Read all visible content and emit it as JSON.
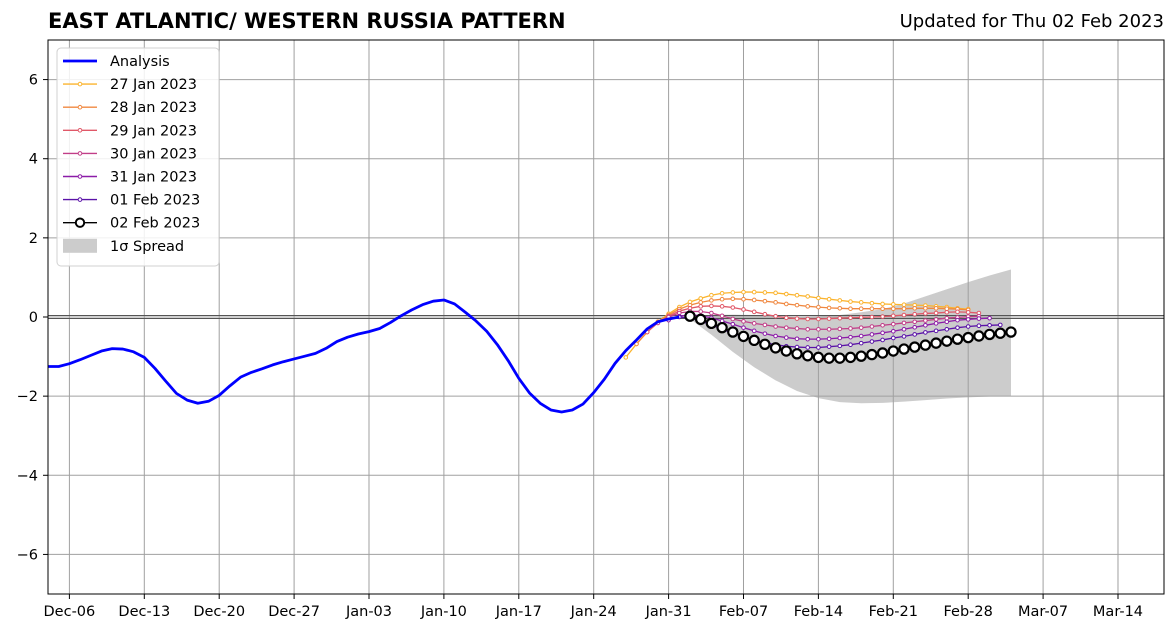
{
  "header": {
    "title": "EAST ATLANTIC/ WESTERN RUSSIA PATTERN",
    "updated": "Updated for Thu 02 Feb 2023"
  },
  "chart_data": {
    "type": "line",
    "title": "EAST ATLANTIC/ WESTERN RUSSIA PATTERN",
    "subtitle": "Updated for Thu 02 Feb 2023",
    "xlabel": "",
    "ylabel": "",
    "x_start_date": "2023-12-04",
    "x_range_days": [
      0,
      104.3
    ],
    "ylim": [
      -7,
      7
    ],
    "grid": true,
    "legend_position": "upper-left",
    "x_ticks": [
      {
        "day": 2,
        "label": "Dec-06"
      },
      {
        "day": 9,
        "label": "Dec-13"
      },
      {
        "day": 16,
        "label": "Dec-20"
      },
      {
        "day": 23,
        "label": "Dec-27"
      },
      {
        "day": 30,
        "label": "Jan-03"
      },
      {
        "day": 37,
        "label": "Jan-10"
      },
      {
        "day": 44,
        "label": "Jan-17"
      },
      {
        "day": 51,
        "label": "Jan-24"
      },
      {
        "day": 58,
        "label": "Jan-31"
      },
      {
        "day": 65,
        "label": "Feb-07"
      },
      {
        "day": 72,
        "label": "Feb-14"
      },
      {
        "day": 79,
        "label": "Feb-21"
      },
      {
        "day": 86,
        "label": "Feb-28"
      },
      {
        "day": 93,
        "label": "Mar-07"
      },
      {
        "day": 100,
        "label": "Mar-14"
      }
    ],
    "y_ticks": [
      6,
      4,
      2,
      0,
      -2,
      -4,
      -6
    ],
    "y_tick_labels": [
      "6",
      "4",
      "2",
      "0",
      "−2",
      "−4",
      "−6"
    ],
    "series": [
      {
        "name": "Analysis",
        "color": "#0000ff",
        "x": [
          0,
          1,
          2,
          3,
          4,
          5,
          6,
          7,
          8,
          9,
          10,
          11,
          12,
          13,
          14,
          15,
          16,
          17,
          18,
          19,
          20,
          21,
          22,
          23,
          24,
          25,
          26,
          27,
          28,
          29,
          30,
          31,
          32,
          33,
          34,
          35,
          36,
          37,
          38,
          39,
          40,
          41,
          42,
          43,
          44,
          45,
          46,
          47,
          48,
          49,
          50,
          51,
          52,
          53,
          54,
          55,
          56,
          57,
          58,
          59
        ],
        "values": [
          -1.25,
          -1.25,
          -1.18,
          -1.08,
          -0.97,
          -0.86,
          -0.8,
          -0.81,
          -0.88,
          -1.02,
          -1.3,
          -1.62,
          -1.93,
          -2.1,
          -2.18,
          -2.13,
          -1.98,
          -1.74,
          -1.52,
          -1.4,
          -1.31,
          -1.21,
          -1.13,
          -1.06,
          -0.99,
          -0.92,
          -0.79,
          -0.62,
          -0.51,
          -0.43,
          -0.37,
          -0.29,
          -0.14,
          0.03,
          0.18,
          0.31,
          0.4,
          0.43,
          0.33,
          0.12,
          -0.1,
          -0.36,
          -0.7,
          -1.1,
          -1.55,
          -1.92,
          -2.18,
          -2.35,
          -2.4,
          -2.35,
          -2.2,
          -1.91,
          -1.57,
          -1.17,
          -0.85,
          -0.58,
          -0.3,
          -0.12,
          -0.05,
          0.0
        ]
      },
      {
        "name": "27 Jan 2023",
        "color": "#fbb42e",
        "x": [
          54,
          55,
          56,
          57,
          58,
          59,
          60,
          61,
          62,
          63,
          64,
          65,
          66,
          67,
          68,
          69,
          70,
          71,
          72,
          73,
          74,
          75,
          76,
          77,
          78,
          79,
          80,
          81,
          82,
          83,
          84,
          85,
          86
        ],
        "values": [
          -1.02,
          -0.68,
          -0.38,
          -0.12,
          0.08,
          0.25,
          0.38,
          0.47,
          0.55,
          0.6,
          0.62,
          0.63,
          0.63,
          0.62,
          0.61,
          0.58,
          0.55,
          0.52,
          0.48,
          0.45,
          0.42,
          0.39,
          0.37,
          0.35,
          0.33,
          0.32,
          0.31,
          0.3,
          0.29,
          0.27,
          0.25,
          0.22,
          0.2
        ]
      },
      {
        "name": "28 Jan 2023",
        "color": "#f08840",
        "x": [
          55,
          56,
          57,
          58,
          59,
          60,
          61,
          62,
          63,
          64,
          65,
          66,
          67,
          68,
          69,
          70,
          71,
          72,
          73,
          74,
          75,
          76,
          77,
          78,
          79,
          80,
          81,
          82,
          83,
          84,
          85,
          86
        ],
        "values": [
          -0.68,
          -0.38,
          -0.12,
          0.05,
          0.2,
          0.3,
          0.37,
          0.42,
          0.45,
          0.46,
          0.45,
          0.43,
          0.4,
          0.37,
          0.33,
          0.3,
          0.27,
          0.25,
          0.23,
          0.22,
          0.21,
          0.21,
          0.21,
          0.21,
          0.21,
          0.21,
          0.22,
          0.22,
          0.22,
          0.21,
          0.2,
          0.18
        ]
      },
      {
        "name": "29 Jan 2023",
        "color": "#e05868",
        "x": [
          56,
          57,
          58,
          59,
          60,
          61,
          62,
          63,
          64,
          65,
          66,
          67,
          68,
          69,
          70,
          71,
          72,
          73,
          74,
          75,
          76,
          77,
          78,
          79,
          80,
          81,
          82,
          83,
          84,
          85,
          86,
          87
        ],
        "values": [
          -0.38,
          -0.15,
          0.02,
          0.15,
          0.22,
          0.27,
          0.28,
          0.27,
          0.24,
          0.19,
          0.13,
          0.07,
          0.02,
          -0.02,
          -0.04,
          -0.05,
          -0.05,
          -0.04,
          -0.03,
          -0.02,
          -0.01,
          0.0,
          0.01,
          0.03,
          0.05,
          0.07,
          0.09,
          0.1,
          0.12,
          0.13,
          0.12,
          0.1
        ]
      },
      {
        "name": "30 Jan 2023",
        "color": "#c13e88",
        "x": [
          57,
          58,
          59,
          60,
          61,
          62,
          63,
          64,
          65,
          66,
          67,
          68,
          69,
          70,
          71,
          72,
          73,
          74,
          75,
          76,
          77,
          78,
          79,
          80,
          81,
          82,
          83,
          84,
          85,
          86,
          87
        ],
        "values": [
          -0.15,
          0.0,
          0.1,
          0.14,
          0.14,
          0.1,
          0.03,
          -0.05,
          -0.11,
          -0.16,
          -0.2,
          -0.24,
          -0.27,
          -0.29,
          -0.31,
          -0.31,
          -0.31,
          -0.3,
          -0.29,
          -0.27,
          -0.24,
          -0.21,
          -0.18,
          -0.15,
          -0.12,
          -0.09,
          -0.06,
          -0.03,
          -0.01,
          0.01,
          0.02
        ]
      },
      {
        "name": "31 Jan 2023",
        "color": "#8c1ca8",
        "x": [
          58,
          59,
          60,
          61,
          62,
          63,
          64,
          65,
          66,
          67,
          68,
          69,
          70,
          71,
          72,
          73,
          74,
          75,
          76,
          77,
          78,
          79,
          80,
          81,
          82,
          83,
          84,
          85,
          86,
          87,
          88
        ],
        "values": [
          -0.08,
          0.02,
          0.06,
          0.03,
          -0.02,
          -0.1,
          -0.18,
          -0.27,
          -0.35,
          -0.42,
          -0.48,
          -0.52,
          -0.55,
          -0.56,
          -0.56,
          -0.55,
          -0.53,
          -0.51,
          -0.48,
          -0.44,
          -0.4,
          -0.36,
          -0.31,
          -0.26,
          -0.21,
          -0.16,
          -0.12,
          -0.08,
          -0.06,
          -0.04,
          -0.03
        ]
      },
      {
        "name": "01 Feb 2023",
        "color": "#5a12a8",
        "x": [
          59,
          60,
          61,
          62,
          63,
          64,
          65,
          66,
          67,
          68,
          69,
          70,
          71,
          72,
          73,
          74,
          75,
          76,
          77,
          78,
          79,
          80,
          81,
          82,
          83,
          84,
          85,
          86,
          87,
          88,
          89
        ],
        "values": [
          0.0,
          -0.03,
          -0.1,
          -0.2,
          -0.31,
          -0.41,
          -0.5,
          -0.58,
          -0.65,
          -0.7,
          -0.74,
          -0.76,
          -0.77,
          -0.77,
          -0.75,
          -0.73,
          -0.7,
          -0.66,
          -0.62,
          -0.58,
          -0.53,
          -0.49,
          -0.44,
          -0.39,
          -0.35,
          -0.31,
          -0.27,
          -0.24,
          -0.22,
          -0.21,
          -0.2
        ]
      },
      {
        "name": "02 Feb 2023",
        "color": "#000000",
        "x": [
          60,
          61,
          62,
          63,
          64,
          65,
          66,
          67,
          68,
          69,
          70,
          71,
          72,
          73,
          74,
          75,
          76,
          77,
          78,
          79,
          80,
          81,
          82,
          83,
          84,
          85,
          86,
          87,
          88,
          89,
          90
        ],
        "values": [
          0.02,
          -0.06,
          -0.16,
          -0.27,
          -0.38,
          -0.49,
          -0.59,
          -0.69,
          -0.78,
          -0.86,
          -0.93,
          -0.98,
          -1.02,
          -1.04,
          -1.04,
          -1.02,
          -0.99,
          -0.95,
          -0.91,
          -0.86,
          -0.81,
          -0.76,
          -0.71,
          -0.66,
          -0.61,
          -0.56,
          -0.52,
          -0.48,
          -0.44,
          -0.41,
          -0.38
        ]
      }
    ],
    "spread": {
      "name": "1σ Spread",
      "color": "#cccccc",
      "x": [
        60,
        62,
        64,
        66,
        68,
        70,
        72,
        74,
        76,
        78,
        80,
        82,
        84,
        86,
        88,
        90
      ],
      "upper": [
        0.02,
        0.05,
        0.06,
        0.05,
        0.03,
        0.01,
        0.02,
        0.05,
        0.12,
        0.2,
        0.34,
        0.52,
        0.7,
        0.88,
        1.05,
        1.2
      ],
      "lower": [
        -0.05,
        -0.45,
        -0.88,
        -1.27,
        -1.6,
        -1.87,
        -2.05,
        -2.15,
        -2.18,
        -2.17,
        -2.14,
        -2.1,
        -2.06,
        -2.03,
        -2.01,
        -2.0
      ]
    },
    "legend": [
      {
        "label": "Analysis",
        "style": "line",
        "color": "#0000ff"
      },
      {
        "label": "27 Jan 2023",
        "style": "line-dot",
        "color": "#fbb42e"
      },
      {
        "label": "28 Jan 2023",
        "style": "line-dot",
        "color": "#f08840"
      },
      {
        "label": "29 Jan 2023",
        "style": "line-dot",
        "color": "#e05868"
      },
      {
        "label": "30 Jan 2023",
        "style": "line-dot",
        "color": "#c13e88"
      },
      {
        "label": "31 Jan 2023",
        "style": "line-dot",
        "color": "#8c1ca8"
      },
      {
        "label": "01 Feb 2023",
        "style": "line-dot",
        "color": "#5a12a8"
      },
      {
        "label": "02 Feb 2023",
        "style": "line-circle",
        "color": "#000000"
      },
      {
        "label": "1σ Spread",
        "style": "patch",
        "color": "#cccccc"
      }
    ]
  }
}
